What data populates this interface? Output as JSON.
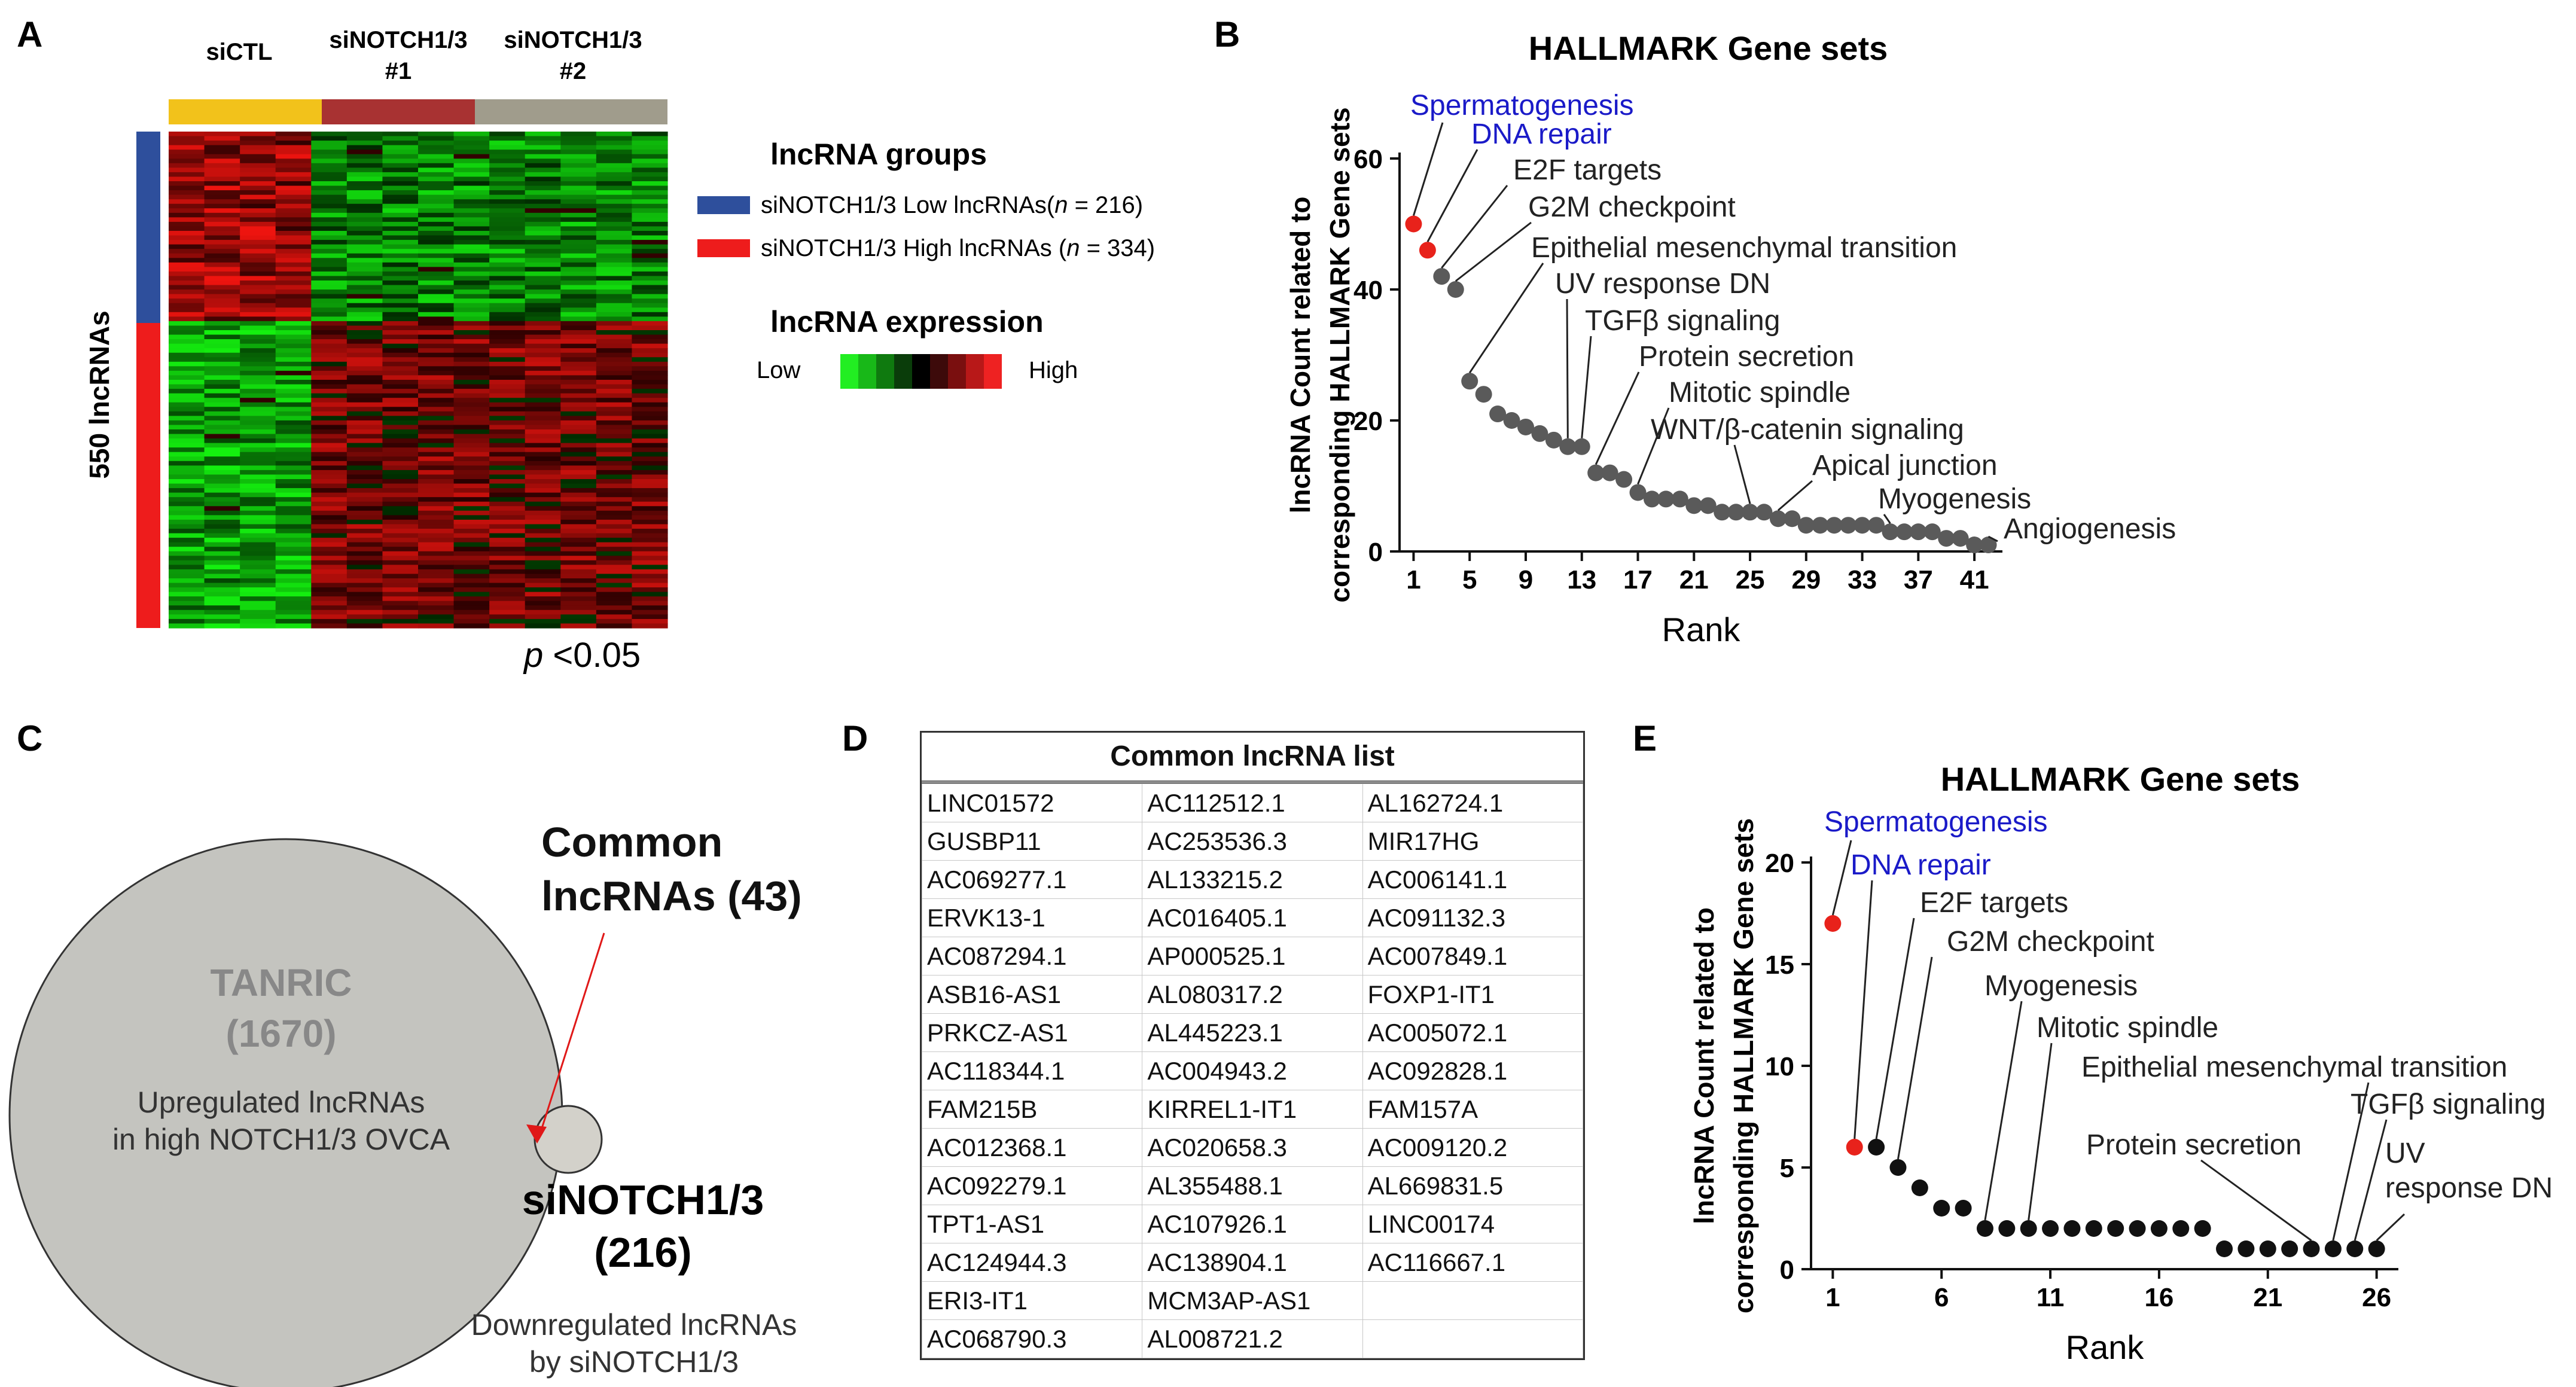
{
  "panels": {
    "a": "A",
    "b": "B",
    "c": "C",
    "d": "D",
    "e": "E"
  },
  "heatmap": {
    "groups": [
      "siCTL",
      "siNOTCH1/3\n#1",
      "siNOTCH1/3\n#2"
    ],
    "group_colors": [
      "#f2c21b",
      "#a83232",
      "#a09c8c"
    ],
    "row_label": "550 lncRNAs",
    "row_group_colors": [
      "#2e4f9c",
      "#ee1c1c"
    ],
    "legend_title": "lncRNA groups",
    "legend_items": [
      {
        "text": "siNOTCH1/3 Low lncRNAs(",
        "n": "n",
        "rest": " = 216)",
        "color": "#2e4f9c"
      },
      {
        "text": "siNOTCH1/3 High lncRNAs (",
        "n": "n",
        "rest": " = 334)",
        "color": "#ee1c1c"
      }
    ],
    "expression_title": "lncRNA expression",
    "expression_low": "Low",
    "expression_high": "High",
    "expression_scale": [
      "#22ee22",
      "#18b818",
      "#0f7a0f",
      "#0a3d0a",
      "#000000",
      "#3d0a0a",
      "#7a0f0f",
      "#b81818",
      "#ee2222"
    ],
    "pvalue_p": "p",
    "pvalue_rest": " <0.05"
  },
  "chart_data": [
    {
      "id": "B",
      "type": "scatter",
      "title": "HALLMARK Gene sets",
      "xlabel": "Rank",
      "ylabel": "lncRNA Count  related to\ncorresponding HALLMARK Gene sets",
      "xticks": [
        1,
        5,
        9,
        13,
        17,
        21,
        25,
        29,
        33,
        37,
        41
      ],
      "yticks": [
        0,
        20,
        40,
        60
      ],
      "xlim": [
        0,
        43
      ],
      "ylim": [
        0,
        60
      ],
      "x": [
        1,
        2,
        3,
        4,
        5,
        6,
        7,
        8,
        9,
        10,
        11,
        12,
        13,
        14,
        15,
        16,
        17,
        18,
        19,
        20,
        21,
        22,
        23,
        24,
        25,
        26,
        27,
        28,
        29,
        30,
        31,
        32,
        33,
        34,
        35,
        36,
        37,
        38,
        39,
        40,
        41,
        42
      ],
      "values": [
        50,
        46,
        42,
        40,
        26,
        24,
        21,
        20,
        19,
        18,
        17,
        16,
        16,
        12,
        12,
        11,
        9,
        8,
        8,
        8,
        7,
        7,
        6,
        6,
        6,
        6,
        5,
        5,
        4,
        4,
        4,
        4,
        4,
        4,
        3,
        3,
        3,
        3,
        2,
        2,
        1,
        1
      ],
      "highlight_color": "#e8221b",
      "point_color": "#5a5a5a",
      "highlighted": [
        1,
        2
      ],
      "annotations": [
        {
          "label": "Spermatogenesis",
          "rank": 1,
          "color": "#1a1ac8"
        },
        {
          "label": "DNA repair",
          "rank": 2,
          "color": "#1a1ac8"
        },
        {
          "label": "E2F targets",
          "rank": 3,
          "color": "#222222"
        },
        {
          "label": "G2M checkpoint",
          "rank": 4,
          "color": "#222222"
        },
        {
          "label": "Epithelial mesenchymal transition",
          "rank": 5,
          "color": "#222222"
        },
        {
          "label": "UV response DN",
          "rank": 12,
          "color": "#222222"
        },
        {
          "label": "TGFβ signaling",
          "rank": 13,
          "color": "#222222"
        },
        {
          "label": "Protein secretion",
          "rank": 14,
          "color": "#222222"
        },
        {
          "label": "Mitotic spindle",
          "rank": 17,
          "color": "#222222"
        },
        {
          "label": "WNT/β-catenin signaling",
          "rank": 25,
          "color": "#222222"
        },
        {
          "label": "Apical junction",
          "rank": 27,
          "color": "#222222"
        },
        {
          "label": "Myogenesis",
          "rank": 35,
          "color": "#222222"
        },
        {
          "label": "Angiogenesis",
          "rank": 42,
          "color": "#222222"
        }
      ]
    },
    {
      "id": "E",
      "type": "scatter",
      "title": "HALLMARK Gene sets",
      "xlabel": "Rank",
      "ylabel": "lncRNA Count related to\ncorresponding HALLMARK Gene sets",
      "xticks": [
        1,
        6,
        11,
        16,
        21,
        26
      ],
      "yticks": [
        0,
        5,
        10,
        15,
        20
      ],
      "xlim": [
        0,
        27
      ],
      "ylim": [
        0,
        20
      ],
      "x": [
        1,
        2,
        3,
        4,
        5,
        6,
        7,
        8,
        9,
        10,
        11,
        12,
        13,
        14,
        15,
        16,
        17,
        18,
        19,
        20,
        21,
        22,
        23,
        24,
        25,
        26
      ],
      "values": [
        17,
        6,
        6,
        5,
        4,
        3,
        3,
        2,
        2,
        2,
        2,
        2,
        2,
        2,
        2,
        2,
        2,
        2,
        1,
        1,
        1,
        1,
        1,
        1,
        1,
        1
      ],
      "highlight_color": "#e8221b",
      "point_color": "#111111",
      "highlighted": [
        1,
        2
      ],
      "annotations": [
        {
          "label": "Spermatogenesis",
          "rank": 1,
          "color": "#1a1ac8"
        },
        {
          "label": "DNA repair",
          "rank": 2,
          "color": "#1a1ac8"
        },
        {
          "label": "E2F targets",
          "rank": 3,
          "color": "#222222"
        },
        {
          "label": "G2M checkpoint",
          "rank": 4,
          "color": "#222222"
        },
        {
          "label": "Myogenesis",
          "rank": 8,
          "color": "#222222"
        },
        {
          "label": "Mitotic spindle",
          "rank": 10,
          "color": "#222222"
        },
        {
          "label": "Epithelial mesenchymal transition",
          "rank": 24,
          "color": "#222222"
        },
        {
          "label": "TGFβ signaling",
          "rank": 25,
          "color": "#222222"
        },
        {
          "label": "UV\nresponse DN",
          "rank": 26,
          "color": "#222222"
        },
        {
          "label": "Protein secretion",
          "rank": 23,
          "color": "#222222"
        }
      ]
    }
  ],
  "venn": {
    "big_title": "TANRIC",
    "big_count": "(1670)",
    "big_desc": "Upregulated lncRNAs\nin high NOTCH1/3 OVCA",
    "common_title": "Common\nlncRNAs (43)",
    "small_title": "siNOTCH1/3",
    "small_count": "(216)",
    "small_desc": "Downregulated lncRNAs\nby siNOTCH1/3",
    "big_color": "#c4c4bf",
    "small_color": "#d3d1ca",
    "arrow_color": "#e01818"
  },
  "table": {
    "title": "Common lncRNA list",
    "rows": [
      [
        "LINC01572",
        "AC112512.1",
        "AL162724.1"
      ],
      [
        "GUSBP11",
        "AC253536.3",
        "MIR17HG"
      ],
      [
        "AC069277.1",
        "AL133215.2",
        "AC006141.1"
      ],
      [
        "ERVK13-1",
        "AC016405.1",
        "AC091132.3"
      ],
      [
        "AC087294.1",
        "AP000525.1",
        "AC007849.1"
      ],
      [
        "ASB16-AS1",
        "AL080317.2",
        "FOXP1-IT1"
      ],
      [
        "PRKCZ-AS1",
        "AL445223.1",
        "AC005072.1"
      ],
      [
        "AC118344.1",
        "AC004943.2",
        "AC092828.1"
      ],
      [
        "FAM215B",
        "KIRREL1-IT1",
        "FAM157A"
      ],
      [
        "AC012368.1",
        "AC020658.3",
        "AC009120.2"
      ],
      [
        "AC092279.1",
        "AL355488.1",
        "AL669831.5"
      ],
      [
        "TPT1-AS1",
        "AC107926.1",
        "LINC00174"
      ],
      [
        "AC124944.3",
        "AC138904.1",
        "AC116667.1"
      ],
      [
        "ERI3-IT1",
        "MCM3AP-AS1",
        ""
      ],
      [
        "AC068790.3",
        "AL008721.2",
        ""
      ]
    ]
  }
}
